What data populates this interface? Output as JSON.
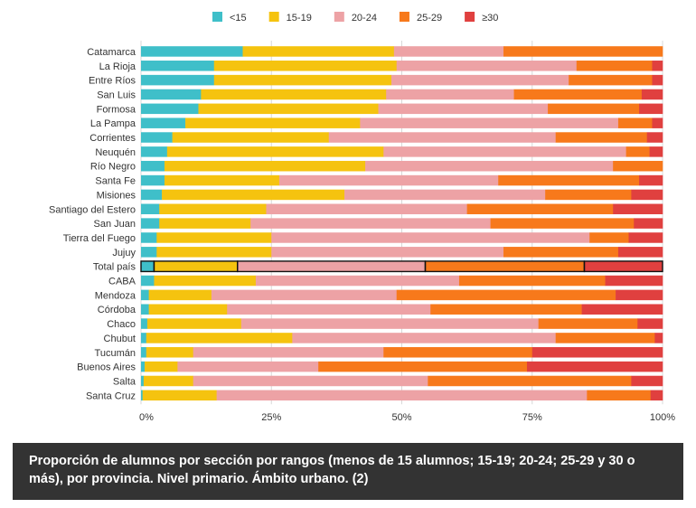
{
  "chart_data": {
    "type": "bar",
    "orientation": "horizontal",
    "stacked": true,
    "normalized_percent": true,
    "categories": [
      "Catamarca",
      "La Rioja",
      "Entre Ríos",
      "San Luis",
      "Formosa",
      "La Pampa",
      "Corrientes",
      "Neuquén",
      "Río Negro",
      "Santa Fe",
      "Misiones",
      "Santiago del Estero",
      "San Juan",
      "Tierra del Fuego",
      "Jujuy",
      "Total país",
      "CABA",
      "Mendoza",
      "Córdoba",
      "Chaco",
      "Chubut",
      "Tucumán",
      "Buenos Aires",
      "Salta",
      "Santa Cruz"
    ],
    "highlight_category": "Total país",
    "series": [
      {
        "name": "<15",
        "color": "#3fbfc9",
        "values": [
          19.5,
          14,
          14,
          11.5,
          11,
          8.5,
          6,
          5,
          4.5,
          4.5,
          4,
          3.5,
          3.5,
          3,
          3,
          2.5,
          2.5,
          1.5,
          1.5,
          1.2,
          1,
          1,
          0.7,
          0.5,
          0.3
        ]
      },
      {
        "name": "15-19",
        "color": "#f5c30f",
        "values": [
          29,
          35,
          34,
          35.5,
          34.5,
          33.5,
          30,
          41.5,
          38.5,
          22,
          35,
          20.5,
          17.5,
          22,
          22,
          16,
          19.5,
          12,
          15,
          18,
          28,
          9,
          6.3,
          9.5,
          14.2
        ]
      },
      {
        "name": "20-24",
        "color": "#eda2a5",
        "values": [
          21,
          34.5,
          34,
          24.5,
          32.5,
          49.5,
          43.5,
          46.5,
          47.5,
          42,
          38.5,
          38.5,
          46,
          61,
          44.5,
          36,
          39,
          35.5,
          39,
          57,
          50.5,
          36.5,
          27,
          45,
          71
        ]
      },
      {
        "name": "25-29",
        "color": "#f7791b",
        "values": [
          30.5,
          14.5,
          16,
          24.5,
          17.5,
          6.5,
          17.5,
          4.5,
          9.5,
          27,
          16.5,
          28,
          27.5,
          7.5,
          22,
          30.5,
          28,
          42,
          29,
          19,
          19,
          28.5,
          40,
          39,
          12.2
        ]
      },
      {
        "name": "≥30",
        "color": "#e0403f",
        "values": [
          0,
          2,
          2,
          4,
          4.5,
          2,
          3,
          2.5,
          0,
          4.5,
          6,
          9.5,
          5.5,
          6.5,
          8.5,
          15,
          11,
          9,
          15.5,
          4.8,
          1.5,
          25,
          26,
          6,
          2.3
        ]
      }
    ],
    "xaxis": {
      "ticks": [
        "0%",
        "25%",
        "50%",
        "75%",
        "100%"
      ],
      "range": [
        0,
        100
      ]
    },
    "grid": true,
    "legend_position": "top-center"
  },
  "caption": "Proporción de alumnos por sección por rangos (menos de 15 alumnos; 15-19; 20-24; 25-29 y 30 o más), por provincia. Nivel primario. Ámbito urbano. (2)"
}
